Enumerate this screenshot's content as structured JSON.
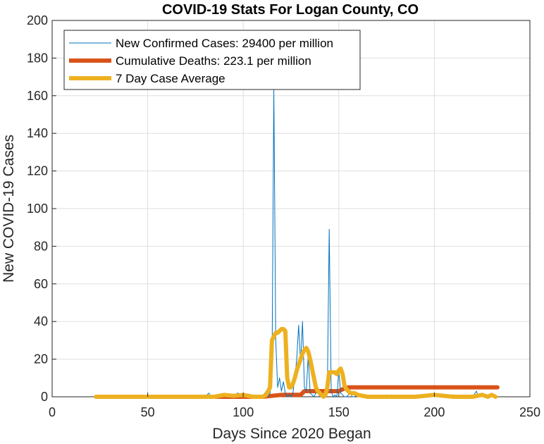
{
  "chart_data": {
    "type": "line",
    "title": "COVID-19 Stats For Logan County, CO",
    "xlabel": "Days Since 2020 Began",
    "ylabel": "New COVID-19 Cases",
    "xlim": [
      0,
      250
    ],
    "ylim": [
      0,
      200
    ],
    "xticks": [
      "0",
      "50",
      "100",
      "150",
      "200",
      "250"
    ],
    "yticks": [
      "0",
      "20",
      "40",
      "60",
      "80",
      "100",
      "120",
      "140",
      "160",
      "180",
      "200"
    ],
    "grid": true,
    "legend_position": "top-left",
    "series": [
      {
        "name": "New Confirmed Cases: 29400 per million",
        "color": "#0072BD",
        "x": [
          23,
          30,
          40,
          50,
          60,
          70,
          80,
          82,
          83,
          85,
          88,
          90,
          92,
          95,
          97,
          100,
          102,
          104,
          106,
          108,
          110,
          112,
          113,
          114,
          115,
          116,
          117,
          118,
          119,
          120,
          121,
          122,
          123,
          124,
          125,
          126,
          127,
          128,
          129,
          130,
          131,
          132,
          133,
          134,
          135,
          136,
          137,
          138,
          139,
          140,
          141,
          142,
          143,
          144,
          145,
          146,
          147,
          148,
          149,
          150,
          151,
          152,
          153,
          154,
          155,
          156,
          157,
          158,
          160,
          165,
          170,
          175,
          180,
          185,
          190,
          195,
          200,
          205,
          210,
          215,
          220,
          222,
          223,
          224,
          225,
          228,
          230,
          232
        ],
        "y": [
          0,
          0,
          0,
          0,
          0,
          0,
          0,
          2,
          0,
          0,
          1,
          0,
          1,
          0,
          2,
          1,
          0,
          0,
          1,
          0,
          0,
          3,
          0,
          2,
          8,
          163,
          30,
          5,
          10,
          3,
          8,
          2,
          0,
          1,
          0,
          2,
          10,
          20,
          38,
          18,
          40,
          5,
          3,
          22,
          2,
          1,
          0,
          2,
          5,
          0,
          1,
          0,
          0,
          2,
          89,
          3,
          0,
          1,
          0,
          14,
          2,
          1,
          0,
          0,
          1,
          3,
          0,
          0,
          1,
          0,
          0,
          1,
          0,
          0,
          0,
          1,
          0,
          0,
          1,
          0,
          0,
          3,
          0,
          0,
          2,
          0,
          1,
          0
        ]
      },
      {
        "name": "Cumulative Deaths: 223.1 per million",
        "color": "#D95319",
        "x": [
          23,
          100,
          110,
          120,
          130,
          132,
          150,
          152,
          155,
          233
        ],
        "y": [
          0,
          0,
          0,
          1,
          1,
          3,
          3,
          4,
          5,
          5
        ]
      },
      {
        "name": "7 Day Case Average",
        "color": "#EDB120",
        "x": [
          23,
          50,
          80,
          85,
          90,
          95,
          100,
          105,
          108,
          110,
          112,
          114,
          115,
          116,
          117,
          118,
          119,
          120,
          121,
          122,
          123,
          124,
          125,
          126,
          127,
          128,
          129,
          130,
          131,
          132,
          133,
          134,
          135,
          136,
          137,
          138,
          139,
          140,
          141,
          142,
          143,
          144,
          145,
          146,
          147,
          148,
          149,
          150,
          151,
          152,
          153,
          154,
          155,
          156,
          158,
          160,
          165,
          170,
          175,
          180,
          190,
          200,
          210,
          220,
          225,
          228,
          230,
          232
        ],
        "y": [
          0,
          0,
          0,
          0,
          1,
          0.5,
          1,
          0,
          0,
          0,
          1,
          5,
          30,
          32,
          34,
          34,
          35,
          36,
          36,
          35,
          10,
          5,
          5,
          7,
          10,
          14,
          17,
          20,
          23,
          25,
          26,
          24,
          20,
          15,
          10,
          5,
          3,
          2,
          1,
          0,
          1,
          5,
          13,
          13,
          13,
          13,
          12,
          14,
          15,
          12,
          6,
          4,
          3,
          2,
          2,
          1,
          0,
          0,
          0,
          0,
          0,
          1,
          0,
          0,
          1,
          0,
          1,
          0
        ]
      }
    ]
  }
}
